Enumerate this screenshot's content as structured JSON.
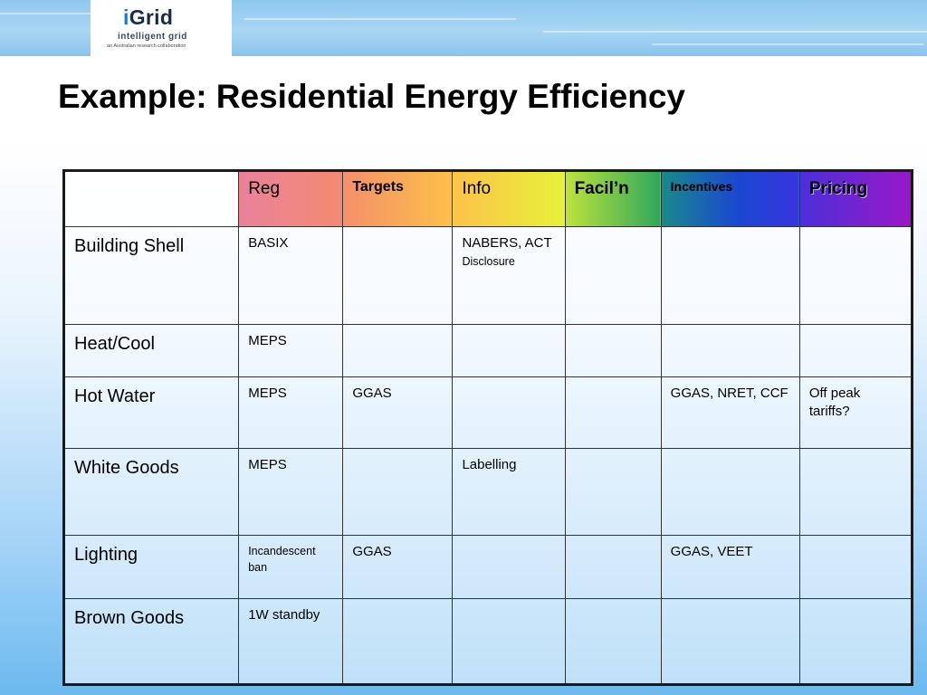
{
  "logo": {
    "prefix": "i",
    "word": "Grid",
    "subtitle": "intelligent grid",
    "tagline": "an Australian research collaboration"
  },
  "title": "Example: Residential Energy Efficiency",
  "table": {
    "columns": [
      "Reg",
      "Targets",
      "Info",
      "Facil’n",
      "Incentives",
      "Pricing"
    ],
    "rows": [
      {
        "label": "Building Shell",
        "cells": [
          "BASIX",
          "",
          "NABERS, ACT",
          "",
          "",
          ""
        ],
        "info_extra": "Disclosure"
      },
      {
        "label": "Heat/Cool",
        "cells": [
          "MEPS",
          "",
          "",
          "",
          "",
          ""
        ]
      },
      {
        "label": "Hot Water",
        "cells": [
          "MEPS",
          "GGAS",
          "",
          "",
          "GGAS, NRET, CCF",
          "Off peak tariffs?"
        ]
      },
      {
        "label": "White Goods",
        "cells": [
          "MEPS",
          "",
          "Labelling",
          "",
          "",
          ""
        ]
      },
      {
        "label": "Lighting",
        "cells": [
          "Incandescent ban",
          "GGAS",
          "",
          "",
          "GGAS, VEET",
          ""
        ]
      },
      {
        "label": "Brown Goods",
        "cells": [
          "1W standby",
          "",
          "",
          "",
          "",
          ""
        ]
      }
    ]
  }
}
